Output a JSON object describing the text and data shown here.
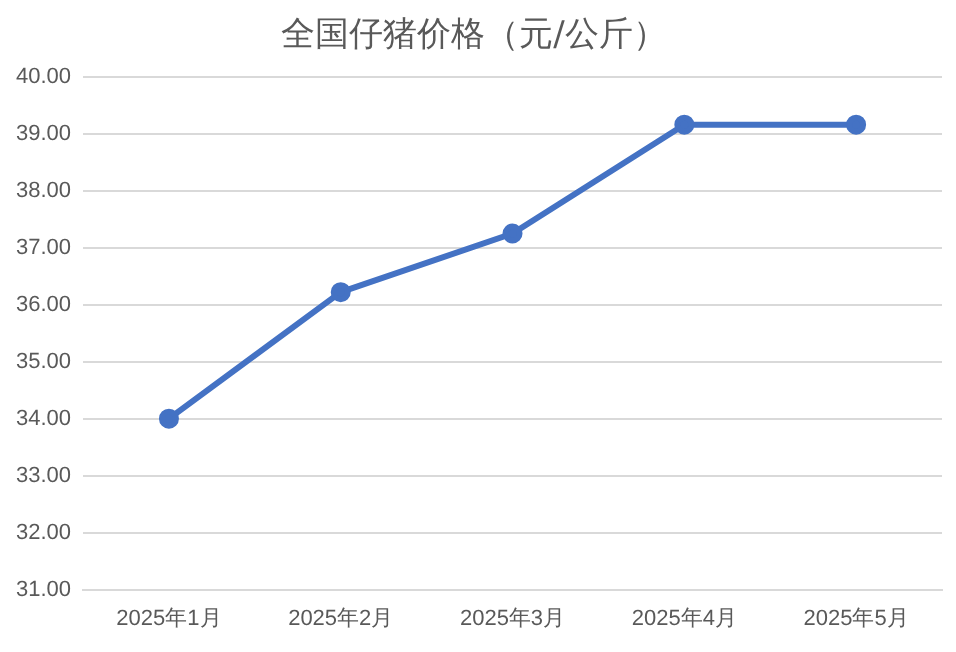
{
  "chart_data": {
    "type": "line",
    "title": "全国仔猪价格（元/公斤）",
    "categories": [
      "2025年1月",
      "2025年2月",
      "2025年3月",
      "2025年4月",
      "2025年5月"
    ],
    "series": [
      {
        "color": "#4472c4",
        "values": [
          34.0,
          36.22,
          37.25,
          39.16,
          39.16
        ]
      }
    ],
    "ylim": [
      31,
      40
    ],
    "yticks": [
      {
        "value": 31,
        "label": "31.00"
      },
      {
        "value": 32,
        "label": "32.00"
      },
      {
        "value": 33,
        "label": "33.00"
      },
      {
        "value": 34,
        "label": "34.00"
      },
      {
        "value": 35,
        "label": "35.00"
      },
      {
        "value": 36,
        "label": "36.00"
      },
      {
        "value": 37,
        "label": "37.00"
      },
      {
        "value": 38,
        "label": "38.00"
      },
      {
        "value": 39,
        "label": "39.00"
      },
      {
        "value": 40,
        "label": "40.00"
      }
    ],
    "grid": "y",
    "legend": false,
    "marker": "circle",
    "line_style": "solid"
  }
}
